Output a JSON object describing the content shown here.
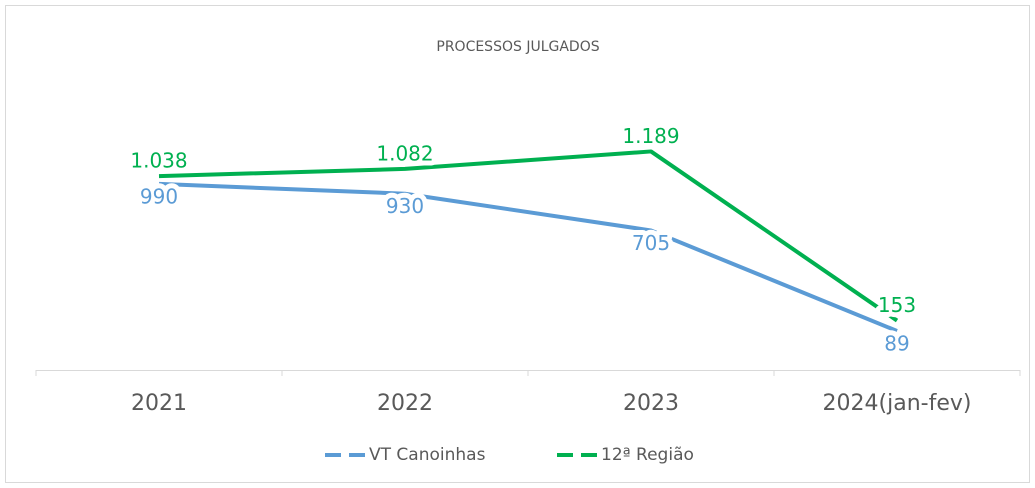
{
  "chart_data": {
    "type": "line",
    "title": "PROCESSOS JULGADOS",
    "categories": [
      "2021",
      "2022",
      "2023",
      "2024(jan-fev)"
    ],
    "series": [
      {
        "name": "VT Canoinhas",
        "color": "#5b9bd5",
        "values": [
          990,
          930,
          705,
          89
        ]
      },
      {
        "name": "12ª Região",
        "color": "#00b050",
        "values": [
          1038,
          1082,
          1189,
          153
        ],
        "value_labels": [
          "1.038",
          "1.082",
          "1.189",
          "153"
        ]
      }
    ],
    "ylim": [
      -150,
      1400
    ],
    "legend": "bottom"
  }
}
